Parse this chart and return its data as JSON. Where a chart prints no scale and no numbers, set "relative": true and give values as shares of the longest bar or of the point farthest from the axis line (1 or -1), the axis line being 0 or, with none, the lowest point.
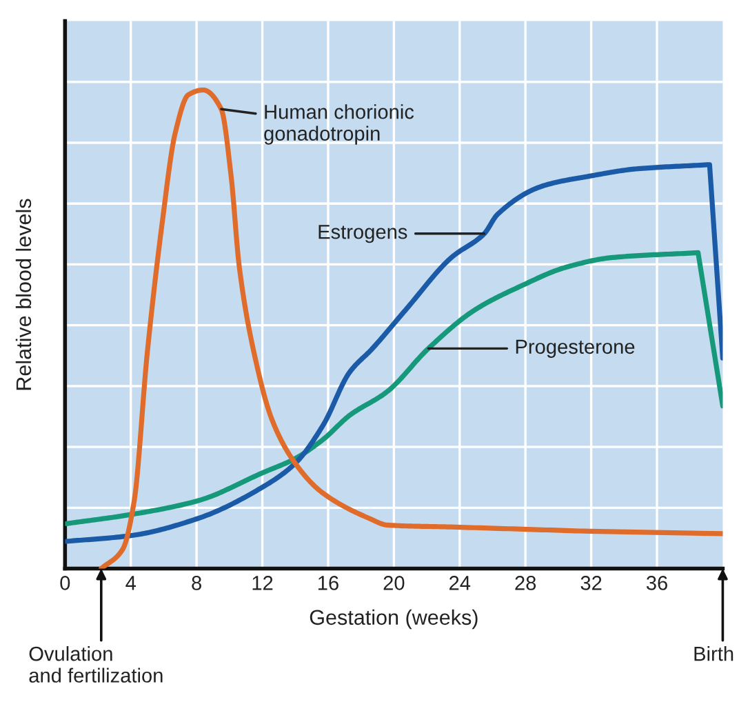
{
  "chart_data": {
    "type": "line",
    "relative": true,
    "xlabel": "Gestation (weeks)",
    "ylabel": "Relative blood levels",
    "xlim": [
      0,
      40
    ],
    "xticks": [
      0,
      4,
      8,
      12,
      16,
      20,
      24,
      28,
      32,
      36
    ],
    "grid": true,
    "legend": false,
    "marker": "none",
    "line_style": "solid",
    "series": [
      {
        "name": "Progesterone",
        "color": "#16997a",
        "x": [
          0.1,
          4,
          8.1,
          12,
          14,
          15.7,
          17.3,
          19.6,
          22.1,
          24.9,
          27.7,
          30.5,
          33.3,
          38.5,
          40
        ],
        "values": [
          0.094,
          0.113,
          0.142,
          0.2,
          0.23,
          0.27,
          0.32,
          0.37,
          0.46,
          0.54,
          0.59,
          0.63,
          0.65,
          0.66,
          0.34
        ]
      },
      {
        "name": "Estrogens",
        "color": "#1b5aa6",
        "x": [
          0.1,
          4,
          8.1,
          12,
          14,
          15.7,
          17.3,
          18.7,
          20.7,
          23.5,
          25.5,
          26.3,
          29.1,
          31.9,
          34.7,
          39.2,
          40
        ],
        "values": [
          0.057,
          0.069,
          0.105,
          0.17,
          0.22,
          0.3,
          0.41,
          0.46,
          0.54,
          0.65,
          0.7,
          0.74,
          0.8,
          0.82,
          0.835,
          0.844,
          0.44
        ]
      },
      {
        "name": "Human chorionic\ngonadotropin",
        "color": "#e06c2c",
        "x": [
          2.2,
          3.5,
          4.2,
          5.0,
          5.9,
          6.7,
          7.5,
          8.4,
          9.5,
          10.1,
          10.6,
          11.5,
          12.6,
          14.0,
          15.6,
          18.5,
          19.6,
          23.5,
          31.9,
          40
        ],
        "values": [
          0,
          0.04,
          0.14,
          0.45,
          0.72,
          0.91,
          0.99,
          1.0,
          0.96,
          0.82,
          0.63,
          0.45,
          0.31,
          0.22,
          0.16,
          0.105,
          0.091,
          0.087,
          0.078,
          0.073
        ]
      }
    ],
    "annotations": [
      {
        "text": "Ovulation\nand fertilization",
        "x": 2.2,
        "y": 0
      },
      "Birth"
    ]
  }
}
